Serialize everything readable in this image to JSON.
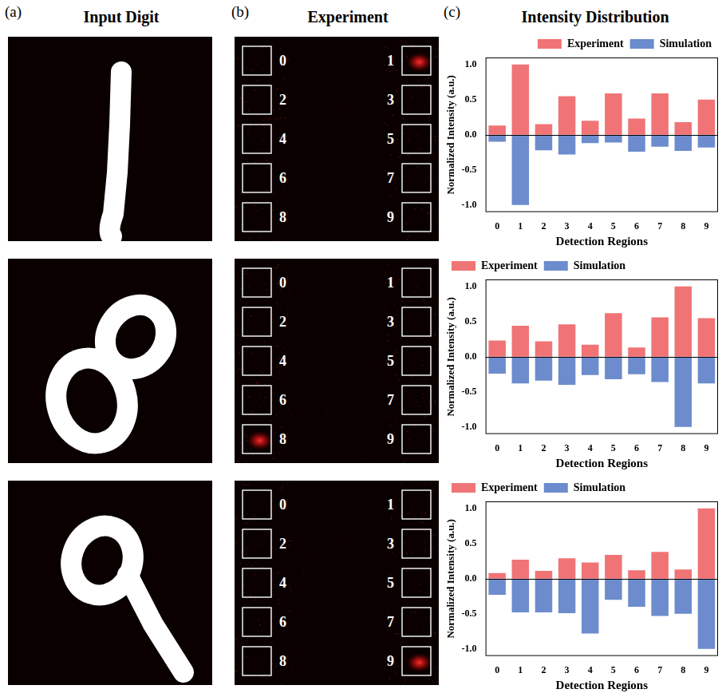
{
  "panels": [
    {
      "letter": "(a)",
      "title": "Input Digit"
    },
    {
      "letter": "(b)",
      "title": "Experiment"
    },
    {
      "letter": "(c)",
      "title": "Intensity Distribution"
    }
  ],
  "input_digits": [
    1,
    8,
    9
  ],
  "detection_regions": [
    "0",
    "1",
    "2",
    "3",
    "4",
    "5",
    "6",
    "7",
    "8",
    "9"
  ],
  "chart_data": [
    {
      "type": "bar",
      "categories": [
        "0",
        "1",
        "2",
        "3",
        "4",
        "5",
        "6",
        "7",
        "8",
        "9"
      ],
      "xlabel": "Detection Regions",
      "ylabel": "Normalized Intensity (a.u.)",
      "series": [
        {
          "name": "Experiment",
          "color": "#f07476",
          "values": [
            0.13,
            1.0,
            0.15,
            0.55,
            0.2,
            0.59,
            0.23,
            0.59,
            0.18,
            0.5
          ]
        },
        {
          "name": "Simulation",
          "color": "#6c8ccd",
          "values": [
            -0.1,
            -1.0,
            -0.22,
            -0.28,
            -0.12,
            -0.11,
            -0.24,
            -0.17,
            -0.23,
            -0.18
          ]
        }
      ],
      "ylim": [
        -1.1,
        1.1
      ],
      "yticks": [
        {
          "value": -1,
          "label": "-1.0"
        },
        {
          "value": -0.5,
          "label": "-0.5"
        },
        {
          "value": 0,
          "label": "0.0"
        },
        {
          "value": 0.5,
          "label": "0.5"
        },
        {
          "value": 1,
          "label": "1.0"
        }
      ],
      "legend": "top right",
      "stacked": true,
      "grid": false
    },
    {
      "type": "bar",
      "categories": [
        "0",
        "1",
        "2",
        "3",
        "4",
        "5",
        "6",
        "7",
        "8",
        "9"
      ],
      "xlabel": "Detection Regions",
      "ylabel": "Normalized Intensity (a.u.)",
      "series": [
        {
          "name": "Experiment",
          "color": "#f07476",
          "values": [
            0.23,
            0.44,
            0.22,
            0.46,
            0.17,
            0.62,
            0.13,
            0.56,
            1.0,
            0.55
          ]
        },
        {
          "name": "Simulation",
          "color": "#6c8ccd",
          "values": [
            -0.24,
            -0.38,
            -0.34,
            -0.4,
            -0.26,
            -0.32,
            -0.25,
            -0.36,
            -1.0,
            -0.38
          ]
        }
      ],
      "ylim": [
        -1.1,
        1.1
      ],
      "yticks": [
        {
          "value": -1,
          "label": "-1.0"
        },
        {
          "value": -0.5,
          "label": "-0.5"
        },
        {
          "value": 0,
          "label": "0.0"
        },
        {
          "value": 0.5,
          "label": "0.5"
        },
        {
          "value": 1,
          "label": "1.0"
        }
      ],
      "legend": "top left",
      "stacked": true,
      "grid": false
    },
    {
      "type": "bar",
      "categories": [
        "0",
        "1",
        "2",
        "3",
        "4",
        "5",
        "6",
        "7",
        "8",
        "9"
      ],
      "xlabel": "Detection Regions",
      "ylabel": "Normalized Intensity (a.u.)",
      "series": [
        {
          "name": "Experiment",
          "color": "#f07476",
          "values": [
            0.08,
            0.27,
            0.11,
            0.29,
            0.23,
            0.34,
            0.12,
            0.38,
            0.13,
            1.0
          ]
        },
        {
          "name": "Simulation",
          "color": "#6c8ccd",
          "values": [
            -0.23,
            -0.48,
            -0.48,
            -0.49,
            -0.78,
            -0.3,
            -0.4,
            -0.53,
            -0.5,
            -1.0
          ]
        }
      ],
      "ylim": [
        -1.1,
        1.1
      ],
      "yticks": [
        {
          "value": -1,
          "label": "-1.0"
        },
        {
          "value": -0.5,
          "label": "-0.5"
        },
        {
          "value": 0,
          "label": "0.0"
        },
        {
          "value": 0.5,
          "label": "0.5"
        },
        {
          "value": 1,
          "label": "1.0"
        }
      ],
      "legend": "top left",
      "stacked": true,
      "grid": false
    }
  ]
}
